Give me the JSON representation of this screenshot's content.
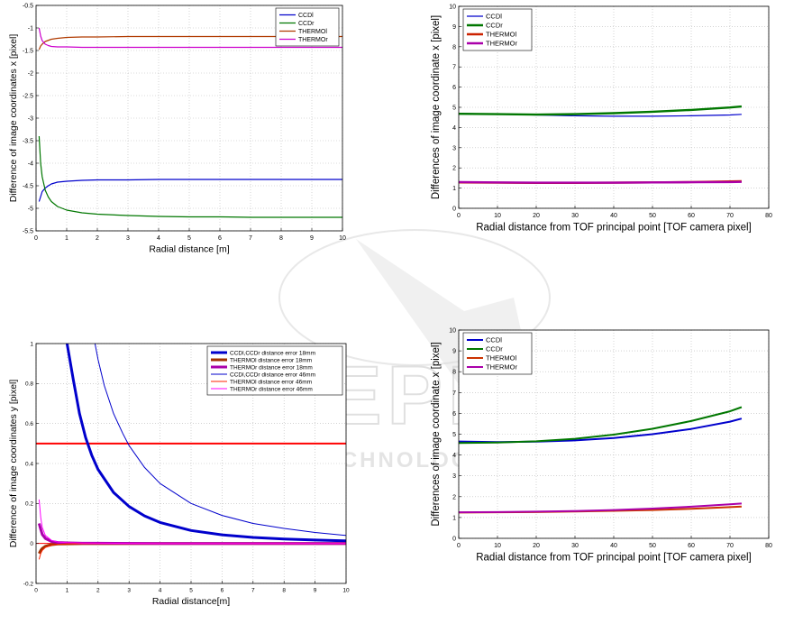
{
  "watermark": {
    "main_text": "SCITEPRESS",
    "sub_text": "SCIENCE AND TECHNOLOGY PUBLICATIONS"
  },
  "chart_data": [
    {
      "type": "line",
      "xlabel": "Radial distance [m]",
      "ylabel": "Difference of image coordinates x [pixel]",
      "xlim": [
        0,
        10
      ],
      "ylim": [
        -5.5,
        -0.5
      ],
      "xticks": [
        0,
        1,
        2,
        3,
        4,
        5,
        6,
        7,
        8,
        9,
        10
      ],
      "yticks": [
        -5.5,
        -5,
        -4.5,
        -4,
        -3.5,
        -3,
        -2.5,
        -2,
        -1.5,
        -1,
        -0.5
      ],
      "grid": true,
      "legend_position": "top-right",
      "series": [
        {
          "name": "CCDl",
          "color": "#0000cc",
          "width": 1.2,
          "x": [
            0.1,
            0.2,
            0.3,
            0.4,
            0.5,
            0.7,
            1,
            1.5,
            2,
            3,
            4,
            5,
            6,
            7,
            8,
            9,
            10
          ],
          "y": [
            -4.85,
            -4.63,
            -4.55,
            -4.5,
            -4.46,
            -4.42,
            -4.4,
            -4.38,
            -4.37,
            -4.37,
            -4.36,
            -4.36,
            -4.36,
            -4.36,
            -4.36,
            -4.36,
            -4.36
          ]
        },
        {
          "name": "CCDr",
          "color": "#007700",
          "width": 1.2,
          "x": [
            0.1,
            0.15,
            0.2,
            0.3,
            0.4,
            0.5,
            0.7,
            1,
            1.5,
            2,
            3,
            4,
            5,
            6,
            7,
            8,
            9,
            10
          ],
          "y": [
            -3.4,
            -4.0,
            -4.3,
            -4.6,
            -4.75,
            -4.85,
            -4.96,
            -5.04,
            -5.1,
            -5.13,
            -5.16,
            -5.18,
            -5.19,
            -5.19,
            -5.2,
            -5.2,
            -5.2,
            -5.2
          ]
        },
        {
          "name": "THERMOl",
          "color": "#b03a00",
          "width": 1.2,
          "x": [
            0.1,
            0.15,
            0.2,
            0.3,
            0.5,
            0.7,
            1,
            1.5,
            2,
            3,
            4,
            5,
            6,
            7,
            8,
            9,
            10
          ],
          "y": [
            -1.48,
            -1.4,
            -1.36,
            -1.3,
            -1.25,
            -1.23,
            -1.21,
            -1.2,
            -1.2,
            -1.19,
            -1.19,
            -1.19,
            -1.19,
            -1.19,
            -1.19,
            -1.19,
            -1.19
          ]
        },
        {
          "name": "THERMOr",
          "color": "#cc00cc",
          "width": 1.2,
          "x": [
            0.1,
            0.15,
            0.2,
            0.3,
            0.4,
            0.5,
            0.7,
            1,
            1.5,
            2,
            3,
            4,
            5,
            6,
            7,
            8,
            9,
            10
          ],
          "y": [
            -1.0,
            -1.18,
            -1.28,
            -1.36,
            -1.39,
            -1.41,
            -1.42,
            -1.42,
            -1.43,
            -1.43,
            -1.43,
            -1.43,
            -1.43,
            -1.43,
            -1.43,
            -1.43,
            -1.43,
            -1.43
          ]
        }
      ]
    },
    {
      "type": "line",
      "xlabel": "Radial distance from TOF principal point [TOF camera pixel]",
      "ylabel": "Differences of image coordinate x [pixel]",
      "xlim": [
        0,
        80
      ],
      "ylim": [
        0,
        10
      ],
      "xticks": [
        0,
        10,
        20,
        30,
        40,
        50,
        60,
        70,
        80
      ],
      "yticks": [
        0,
        1,
        2,
        3,
        4,
        5,
        6,
        7,
        8,
        9,
        10
      ],
      "grid": true,
      "legend_position": "top-left",
      "series": [
        {
          "name": "CCDl",
          "color": "#0000cc",
          "width": 1.2,
          "x": [
            0,
            10,
            20,
            30,
            40,
            50,
            60,
            70,
            73
          ],
          "y": [
            4.7,
            4.66,
            4.62,
            4.58,
            4.56,
            4.56,
            4.58,
            4.62,
            4.65
          ]
        },
        {
          "name": "CCDr",
          "color": "#007700",
          "width": 2.4,
          "x": [
            0,
            10,
            20,
            30,
            40,
            50,
            60,
            70,
            73
          ],
          "y": [
            4.68,
            4.66,
            4.64,
            4.66,
            4.71,
            4.78,
            4.87,
            4.99,
            5.04
          ]
        },
        {
          "name": "THERMOl",
          "color": "#cc2200",
          "width": 2.4,
          "x": [
            0,
            10,
            20,
            30,
            40,
            50,
            60,
            70,
            73
          ],
          "y": [
            1.28,
            1.27,
            1.26,
            1.26,
            1.27,
            1.28,
            1.3,
            1.33,
            1.34
          ]
        },
        {
          "name": "THERMOr",
          "color": "#aa00aa",
          "width": 2.4,
          "x": [
            0,
            10,
            20,
            30,
            40,
            50,
            60,
            70,
            73
          ],
          "y": [
            1.3,
            1.28,
            1.27,
            1.27,
            1.27,
            1.28,
            1.29,
            1.3,
            1.31
          ]
        }
      ]
    },
    {
      "type": "line",
      "xlabel": "Radial distance[m]",
      "ylabel": "Difference of image coordinates y [pixel]",
      "xlim": [
        0,
        10
      ],
      "ylim": [
        -0.2,
        1
      ],
      "xticks": [
        0,
        1,
        2,
        3,
        4,
        5,
        6,
        7,
        8,
        9,
        10
      ],
      "yticks": [
        -0.2,
        0,
        0.2,
        0.4,
        0.6,
        0.8,
        1
      ],
      "grid": true,
      "legend_position": "top-right",
      "series": [
        {
          "name": "CCDl,CCDr distance error 18mm",
          "color": "#0000cc",
          "width": 3,
          "x": [
            1,
            1.2,
            1.4,
            1.6,
            1.8,
            2,
            2.5,
            3,
            3.5,
            4,
            5,
            6,
            7,
            8,
            9,
            10
          ],
          "y": [
            1.0,
            0.82,
            0.65,
            0.53,
            0.44,
            0.37,
            0.255,
            0.185,
            0.138,
            0.105,
            0.065,
            0.043,
            0.03,
            0.022,
            0.017,
            0.013
          ]
        },
        {
          "name": "THERMOl distance error 18mm",
          "color": "#a03000",
          "width": 3,
          "x": [
            0.1,
            0.15,
            0.2,
            0.3,
            0.5,
            0.7,
            1,
            1.5,
            2,
            4,
            6,
            8,
            10
          ],
          "y": [
            -0.05,
            -0.035,
            -0.025,
            -0.014,
            -0.006,
            -0.003,
            -0.002,
            -0.001,
            -0.001,
            0,
            0,
            0,
            0
          ]
        },
        {
          "name": "THERMOr distance error 18mm",
          "color": "#aa00aa",
          "width": 3,
          "x": [
            0.1,
            0.15,
            0.2,
            0.3,
            0.5,
            0.7,
            1,
            1.5,
            2,
            4,
            6,
            8,
            10
          ],
          "y": [
            0.1,
            0.07,
            0.045,
            0.025,
            0.01,
            0.005,
            0.003,
            0.001,
            0.001,
            0,
            0,
            0,
            0
          ]
        },
        {
          "name": "CCDl,CCDr distance error 46mm",
          "color": "#0000cc",
          "width": 1,
          "x": [
            1.9,
            2,
            2.2,
            2.5,
            2.8,
            3,
            3.5,
            4,
            5,
            6,
            7,
            8,
            9,
            10
          ],
          "y": [
            1.0,
            0.92,
            0.79,
            0.65,
            0.55,
            0.49,
            0.38,
            0.3,
            0.2,
            0.14,
            0.1,
            0.075,
            0.055,
            0.04
          ]
        },
        {
          "name": "THERMOl distance error 46mm",
          "color": "#ff2200",
          "width": 1,
          "x": [
            0.1,
            0.15,
            0.2,
            0.3,
            0.5,
            0.7,
            1,
            1.5,
            2,
            4,
            6,
            8,
            10
          ],
          "y": [
            -0.08,
            -0.05,
            -0.035,
            -0.02,
            -0.008,
            -0.004,
            -0.002,
            -0.001,
            0,
            0,
            0,
            0,
            0
          ]
        },
        {
          "name": "THERMOr distance error 46mm",
          "color": "#ff00ff",
          "width": 1,
          "x": [
            0.1,
            0.15,
            0.2,
            0.3,
            0.5,
            0.7,
            1,
            1.5,
            2,
            4,
            6,
            8,
            10
          ],
          "y": [
            0.22,
            0.13,
            0.08,
            0.04,
            0.015,
            0.007,
            0.004,
            0.002,
            0.001,
            0,
            0,
            0,
            0
          ]
        }
      ],
      "reference_lines": [
        {
          "y": 0.5,
          "color": "#ff0000",
          "width": 2
        },
        {
          "y": 0,
          "color": "#ff0000",
          "width": 1
        }
      ]
    },
    {
      "type": "line",
      "xlabel": "Radial distance from TOF principal point [TOF camera pixel]",
      "ylabel": "Differences of image coordinate x [pixel]",
      "xlim": [
        0,
        80
      ],
      "ylim": [
        0,
        10
      ],
      "xticks": [
        0,
        10,
        20,
        30,
        40,
        50,
        60,
        70,
        80
      ],
      "yticks": [
        0,
        1,
        2,
        3,
        4,
        5,
        6,
        7,
        8,
        9,
        10
      ],
      "grid": true,
      "legend_position": "top-left",
      "series": [
        {
          "name": "CCDl",
          "color": "#0000cc",
          "width": 2,
          "x": [
            0,
            10,
            20,
            30,
            40,
            50,
            60,
            70,
            73
          ],
          "y": [
            4.65,
            4.62,
            4.64,
            4.7,
            4.82,
            5.0,
            5.25,
            5.6,
            5.75
          ]
        },
        {
          "name": "CCDr",
          "color": "#007700",
          "width": 2,
          "x": [
            0,
            10,
            20,
            30,
            40,
            50,
            60,
            70,
            73
          ],
          "y": [
            4.58,
            4.6,
            4.66,
            4.78,
            4.98,
            5.26,
            5.63,
            6.1,
            6.3
          ]
        },
        {
          "name": "THERMOl",
          "color": "#cc3300",
          "width": 2,
          "x": [
            0,
            10,
            20,
            30,
            40,
            50,
            60,
            70,
            73
          ],
          "y": [
            1.24,
            1.25,
            1.26,
            1.29,
            1.32,
            1.36,
            1.42,
            1.5,
            1.53
          ]
        },
        {
          "name": "THERMOr",
          "color": "#aa00aa",
          "width": 2,
          "x": [
            0,
            10,
            20,
            30,
            40,
            50,
            60,
            70,
            73
          ],
          "y": [
            1.25,
            1.26,
            1.28,
            1.31,
            1.36,
            1.43,
            1.52,
            1.63,
            1.67
          ]
        }
      ]
    }
  ]
}
